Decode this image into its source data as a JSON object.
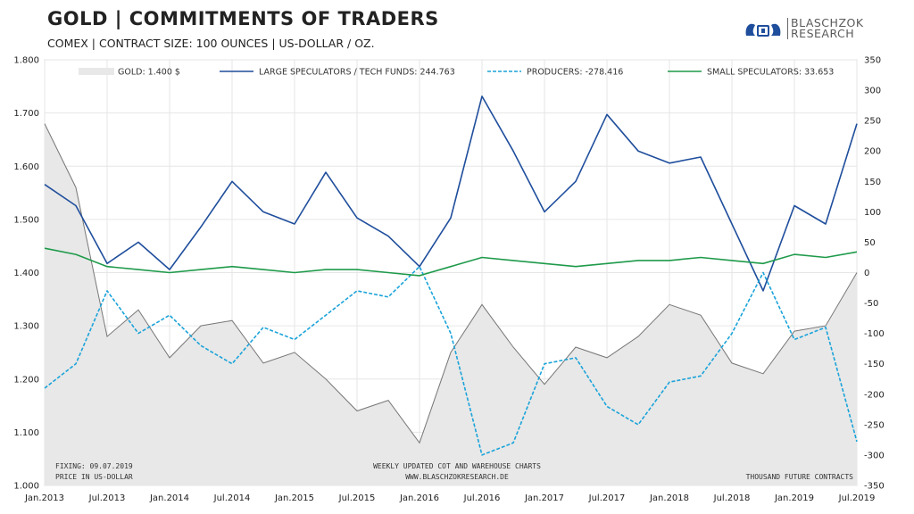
{
  "header": {
    "title": "GOLD | COMMITMENTS OF TRADERS",
    "subtitle": "COMEX | CONTRACT SIZE: 100 OUNCES | US-DOLLAR / OZ."
  },
  "logo": {
    "line1": "BLASCHZOK",
    "line2": "RESEARCH"
  },
  "footer": {
    "fixing": "FIXING: 09.07.2019",
    "price_unit": "PRICE IN US-DOLLAR",
    "center1": "WEEKLY UPDATED COT AND WAREHOUSE CHARTS",
    "center2": "WWW.BLASCHZOKRESEARCH.DE",
    "right": "THOUSAND FUTURE CONTRACTS"
  },
  "colors": {
    "gold": "#e8e8e8",
    "gold_line": "#777777",
    "large": "#1f4e9c",
    "producers": "#1aa3d9",
    "small": "#1e9a4a"
  },
  "chart_data": {
    "type": "line",
    "x": [
      "Jan.2013",
      "Apr.2013",
      "Jul.2013",
      "Oct.2013",
      "Jan.2014",
      "Apr.2014",
      "Jul.2014",
      "Oct.2014",
      "Jan.2015",
      "Apr.2015",
      "Jul.2015",
      "Oct.2015",
      "Jan.2016",
      "Apr.2016",
      "Jul.2016",
      "Oct.2016",
      "Jan.2017",
      "Apr.2017",
      "Jul.2017",
      "Oct.2017",
      "Jan.2018",
      "Apr.2018",
      "Jul.2018",
      "Oct.2018",
      "Jan.2019",
      "Apr.2019",
      "Jul.2019"
    ],
    "x_ticks": [
      "Jan.2013",
      "Jul.2013",
      "Jan.2014",
      "Jul.2014",
      "Jan.2015",
      "Jul.2015",
      "Jan.2016",
      "Jul.2016",
      "Jan.2017",
      "Jul.2017",
      "Jan.2018",
      "Jul.2018",
      "Jan.2019",
      "Jul.2019"
    ],
    "y_left": {
      "ticks": [
        "1.000",
        "1.100",
        "1.200",
        "1.300",
        "1.400",
        "1.500",
        "1.600",
        "1.700",
        "1.800"
      ],
      "lim": [
        1000,
        1800
      ]
    },
    "y_right": {
      "ticks": [
        "-350",
        "-300",
        "-250",
        "-200",
        "-150",
        "-100",
        "-50",
        "0",
        "50",
        "100",
        "150",
        "200",
        "250",
        "300",
        "350"
      ],
      "lim": [
        -350,
        350
      ]
    },
    "series": [
      {
        "name": "GOLD: 1.400 $",
        "axis": "left",
        "style": "area",
        "values": [
          1680,
          1560,
          1280,
          1330,
          1240,
          1300,
          1310,
          1230,
          1250,
          1200,
          1140,
          1160,
          1080,
          1250,
          1340,
          1260,
          1190,
          1260,
          1240,
          1280,
          1340,
          1320,
          1230,
          1210,
          1290,
          1300,
          1400
        ]
      },
      {
        "name": "LARGE SPECULATORS / TECH FUNDS: 244.763",
        "axis": "right",
        "style": "solid",
        "values": [
          145,
          110,
          15,
          50,
          5,
          75,
          150,
          100,
          80,
          165,
          90,
          60,
          10,
          90,
          290,
          200,
          100,
          150,
          260,
          200,
          180,
          190,
          80,
          -30,
          110,
          80,
          245
        ]
      },
      {
        "name": "PRODUCERS: -278.416",
        "axis": "right",
        "style": "dashed",
        "values": [
          -190,
          -150,
          -30,
          -100,
          -70,
          -120,
          -150,
          -90,
          -110,
          -70,
          -30,
          -40,
          10,
          -100,
          -300,
          -280,
          -150,
          -140,
          -220,
          -250,
          -180,
          -170,
          -100,
          0,
          -110,
          -90,
          -278
        ]
      },
      {
        "name": "SMALL SPECULATORS: 33.653",
        "axis": "right",
        "style": "solid",
        "values": [
          40,
          30,
          10,
          5,
          0,
          5,
          10,
          5,
          0,
          5,
          5,
          0,
          -5,
          10,
          25,
          20,
          15,
          10,
          15,
          20,
          20,
          25,
          20,
          15,
          30,
          25,
          34
        ]
      }
    ]
  }
}
